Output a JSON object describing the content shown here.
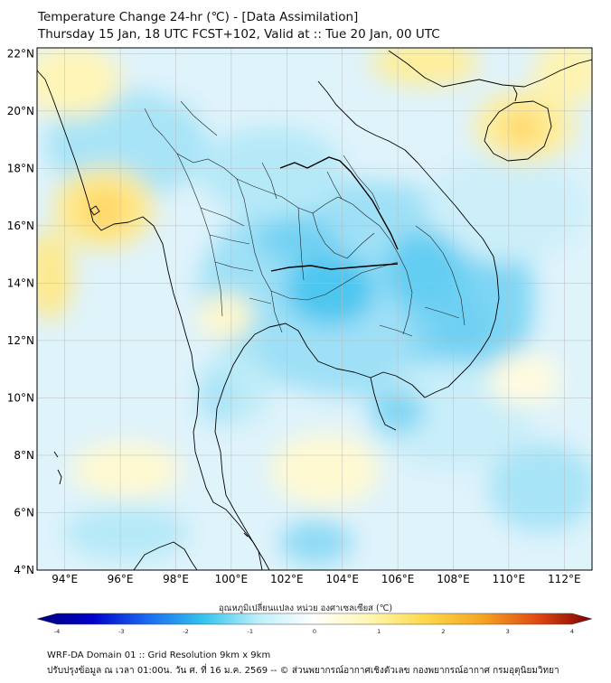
{
  "header": {
    "title_line1": "Temperature Change 24-hr (℃) - [Data Assimilation]",
    "title_line2": "Thursday 15 Jan, 18 UTC FCST+102, Valid at :: Tue 20 Jan, 00 UTC"
  },
  "map": {
    "lat_labels": [
      "22°N",
      "20°N",
      "18°N",
      "16°N",
      "14°N",
      "12°N",
      "10°N",
      "8°N",
      "6°N",
      "4°N"
    ],
    "lon_labels": [
      "94°E",
      "96°E",
      "98°E",
      "100°E",
      "102°E",
      "104°E",
      "106°E",
      "108°E",
      "110°E",
      "112°E"
    ],
    "lat_values": [
      22,
      20,
      18,
      16,
      14,
      12,
      10,
      8,
      6,
      4
    ],
    "lon_values": [
      94,
      96,
      98,
      100,
      102,
      104,
      106,
      108,
      110,
      112
    ],
    "extent": {
      "lon_min": 93,
      "lon_max": 113,
      "lat_min": 4,
      "lat_max": 22.2
    },
    "gridlines": true,
    "colors": {
      "land_border": "#000000",
      "grid": "#bbbbbb",
      "background": "#ffffff"
    }
  },
  "colorbar": {
    "label": "อุณหภูมิเปลี่ยนแปลง หน่วย องศาเซลเซียส (℃)",
    "min": -4,
    "max": 4,
    "ticks": [
      "-4",
      "-3",
      "-2",
      "-1",
      "0",
      "1",
      "2",
      "3",
      "4"
    ],
    "stops": [
      "#00007a",
      "#0000cc",
      "#1a6cf0",
      "#35c4ee",
      "#bff0fb",
      "#ffffff",
      "#fff7b0",
      "#ffd84a",
      "#f5a623",
      "#e24a12",
      "#7a0000"
    ]
  },
  "footer": {
    "line1": "WRF-DA Domain 01 :: Grid Resolution 9km x 9km",
    "line2": "ปรับปรุงข้อมูล ณ เวลา 01:00น. วัน ศ. ที่ 16 ม.ค. 2569 -- © ส่วนพยากรณ์อากาศเชิงตัวเลข กองพยากรณ์อากาศ กรมอุตุนิยมวิทยา"
  }
}
